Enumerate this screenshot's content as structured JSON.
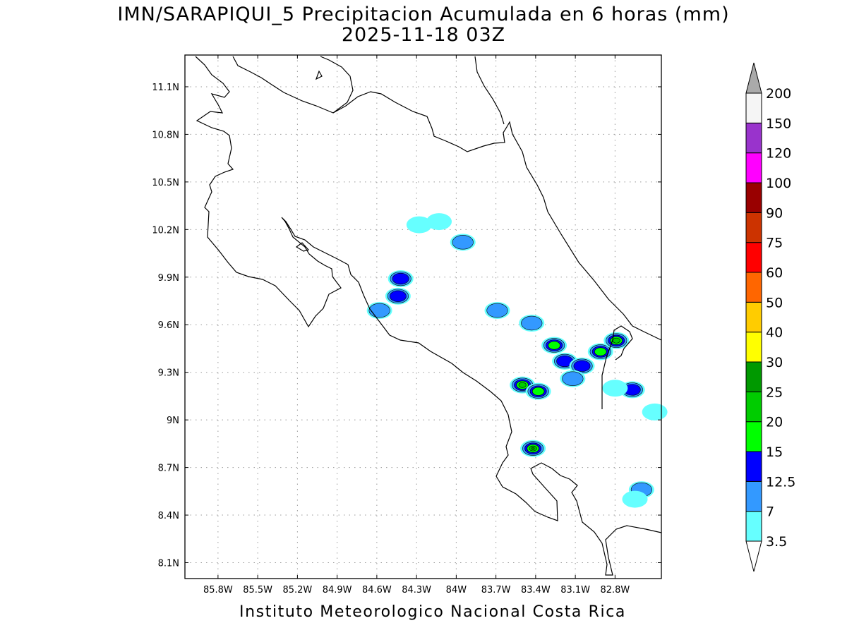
{
  "title": {
    "line1": "IMN/SARAPIQUI_5 Precipitacion Acumulada en 6 horas (mm)",
    "line2": "2025-11-18 03Z"
  },
  "footer": "Instituto Meteorologico Nacional Costa Rica",
  "map": {
    "lon_range": [
      -86.05,
      -82.45
    ],
    "lat_range": [
      8.0,
      11.3
    ],
    "lon_ticks": [
      {
        "value": -85.8,
        "label": "85.8W"
      },
      {
        "value": -85.5,
        "label": "85.5W"
      },
      {
        "value": -85.2,
        "label": "85.2W"
      },
      {
        "value": -84.9,
        "label": "84.9W"
      },
      {
        "value": -84.6,
        "label": "84.6W"
      },
      {
        "value": -84.3,
        "label": "84.3W"
      },
      {
        "value": -84.0,
        "label": "84W"
      },
      {
        "value": -83.7,
        "label": "83.7W"
      },
      {
        "value": -83.4,
        "label": "83.4W"
      },
      {
        "value": -83.1,
        "label": "83.1W"
      },
      {
        "value": -82.8,
        "label": "82.8W"
      }
    ],
    "lat_ticks": [
      {
        "value": 11.1,
        "label": "11.1N"
      },
      {
        "value": 10.8,
        "label": "10.8N"
      },
      {
        "value": 10.5,
        "label": "10.5N"
      },
      {
        "value": 10.2,
        "label": "10.2N"
      },
      {
        "value": 9.9,
        "label": "9.9N"
      },
      {
        "value": 9.6,
        "label": "9.6N"
      },
      {
        "value": 9.3,
        "label": "9.3N"
      },
      {
        "value": 9.0,
        "label": "9N"
      },
      {
        "value": 8.7,
        "label": "8.7N"
      },
      {
        "value": 8.4,
        "label": "8.4N"
      },
      {
        "value": 8.1,
        "label": "8.1N"
      }
    ],
    "grid": true
  },
  "colorbar": {
    "labels": [
      "3.5",
      "7",
      "12.5",
      "15",
      "20",
      "25",
      "30",
      "40",
      "50",
      "60",
      "75",
      "90",
      "100",
      "120",
      "150",
      "200"
    ],
    "colors": [
      "#66ffff",
      "#3399ff",
      "#0000ff",
      "#00ff00",
      "#00cc00",
      "#009900",
      "#ffff00",
      "#ffcc00",
      "#ff6600",
      "#ff0000",
      "#cc3300",
      "#990000",
      "#ff00ff",
      "#9933cc",
      "#f5f5f5",
      "#aaaaaa"
    ]
  },
  "precip_cells": [
    {
      "lon": -84.42,
      "lat": 9.89,
      "level": 2
    },
    {
      "lon": -84.44,
      "lat": 9.78,
      "level": 2
    },
    {
      "lon": -84.58,
      "lat": 9.69,
      "level": 1
    },
    {
      "lon": -84.13,
      "lat": 10.25,
      "level": 0
    },
    {
      "lon": -84.28,
      "lat": 10.23,
      "level": 0
    },
    {
      "lon": -83.95,
      "lat": 10.12,
      "level": 1
    },
    {
      "lon": -83.69,
      "lat": 9.69,
      "level": 1
    },
    {
      "lon": -83.43,
      "lat": 9.61,
      "level": 1
    },
    {
      "lon": -83.26,
      "lat": 9.47,
      "level": 3
    },
    {
      "lon": -83.18,
      "lat": 9.37,
      "level": 2
    },
    {
      "lon": -83.05,
      "lat": 9.34,
      "level": 2
    },
    {
      "lon": -83.12,
      "lat": 9.26,
      "level": 1
    },
    {
      "lon": -83.5,
      "lat": 9.22,
      "level": 4
    },
    {
      "lon": -83.38,
      "lat": 9.18,
      "level": 3
    },
    {
      "lon": -82.91,
      "lat": 9.43,
      "level": 3
    },
    {
      "lon": -82.79,
      "lat": 9.5,
      "level": 4
    },
    {
      "lon": -82.67,
      "lat": 9.19,
      "level": 2
    },
    {
      "lon": -82.8,
      "lat": 9.2,
      "level": 0
    },
    {
      "lon": -83.42,
      "lat": 8.82,
      "level": 6
    },
    {
      "lon": -82.6,
      "lat": 8.56,
      "level": 1
    },
    {
      "lon": -82.65,
      "lat": 8.5,
      "level": 0
    },
    {
      "lon": -82.5,
      "lat": 9.05,
      "level": 0
    }
  ]
}
